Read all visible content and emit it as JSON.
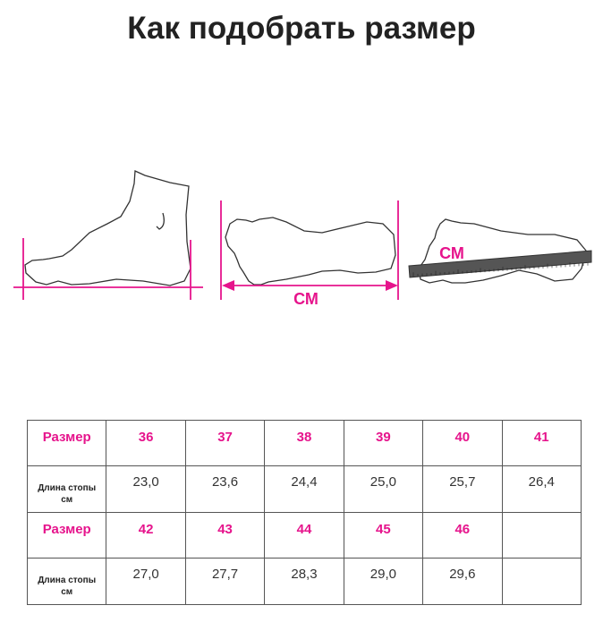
{
  "title": "Как подобрать размер",
  "illustration": {
    "unit_label_1": "СМ",
    "unit_label_2": "СМ",
    "accent_color": "#e6148c"
  },
  "table": {
    "size_label": "Размер",
    "length_label_line1": "Длина стопы",
    "length_label_line2": "см",
    "rows": [
      {
        "sizes": [
          "36",
          "37",
          "38",
          "39",
          "40",
          "41"
        ],
        "lengths": [
          "23,0",
          "23,6",
          "24,4",
          "25,0",
          "25,7",
          "26,4"
        ]
      },
      {
        "sizes": [
          "42",
          "43",
          "44",
          "45",
          "46",
          ""
        ],
        "lengths": [
          "27,0",
          "27,7",
          "28,3",
          "29,0",
          "29,6",
          ""
        ]
      }
    ]
  }
}
